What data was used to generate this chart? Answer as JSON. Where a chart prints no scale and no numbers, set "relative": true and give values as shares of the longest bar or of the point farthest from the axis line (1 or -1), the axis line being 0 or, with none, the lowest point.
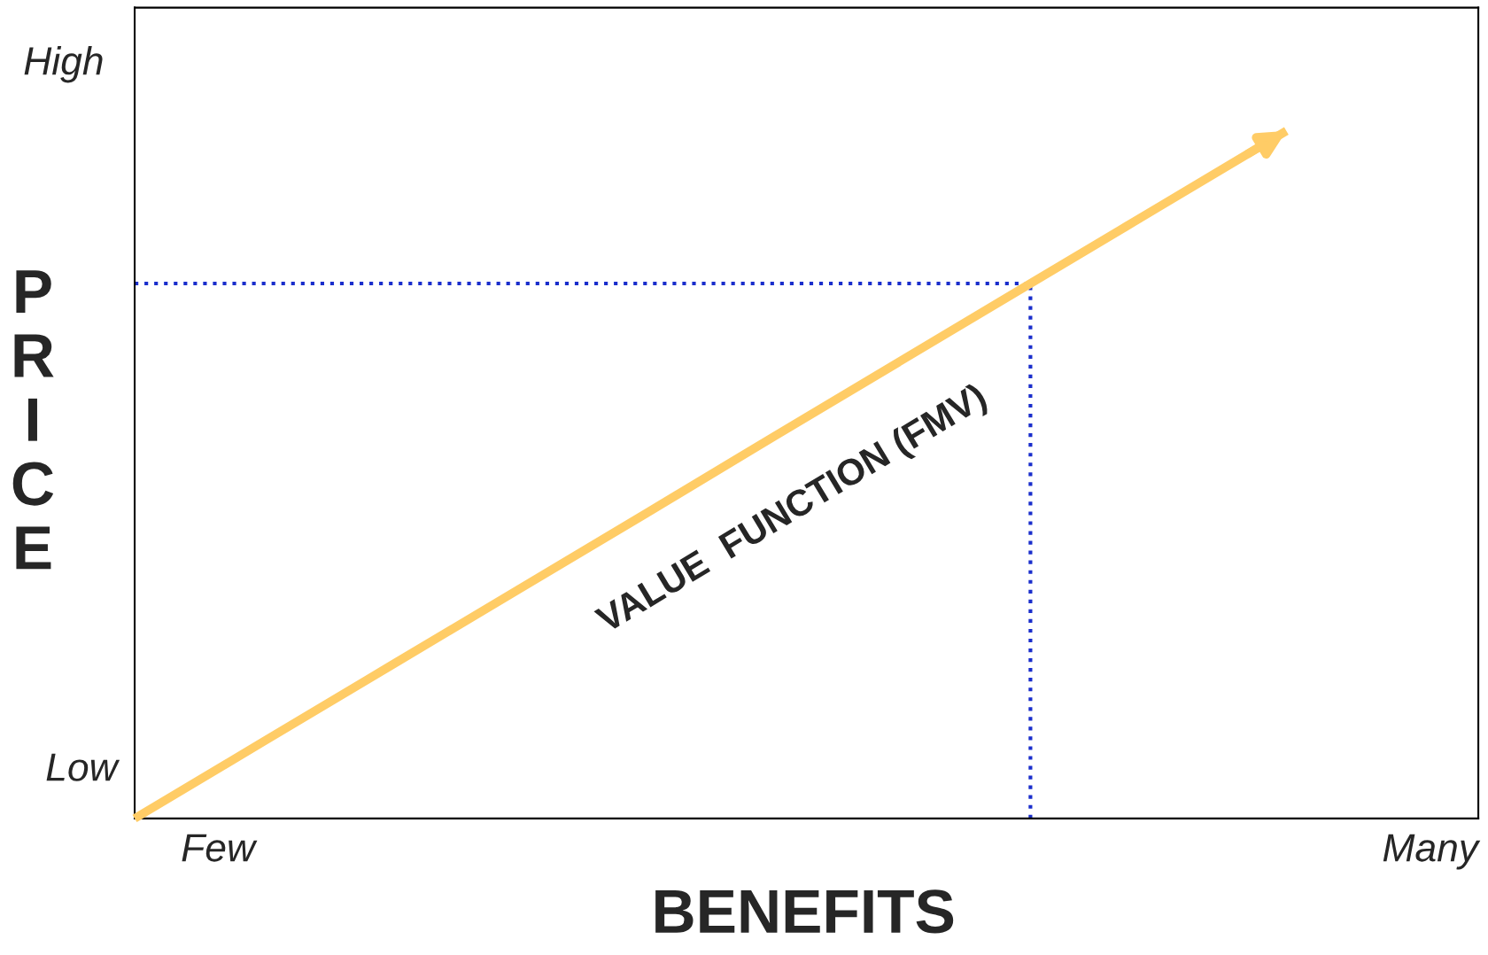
{
  "chart_data": {
    "type": "line",
    "xlabel": "BENEFITS",
    "ylabel": "PRICE",
    "relative": true,
    "marker": "none",
    "line_style": "solid",
    "categories": [
      null,
      null,
      null,
      null,
      null,
      null,
      null,
      null,
      null,
      null,
      null,
      null
    ],
    "series": [
      {
        "values": [
          0,
          0.111,
          0.222,
          0.333,
          0.444,
          0.556,
          0.667,
          0.778,
          0.889,
          1,
          null,
          null
        ],
        "color": "#ffcc66"
      }
    ],
    "ref_lines": [
      {
        "axis": "y",
        "value": 0.778,
        "color": "#1a2ecc",
        "line_style": "dotted"
      }
    ],
    "annotations": [
      "VALUE  FUNCTION (FMV)",
      "Few",
      "Many",
      "Low",
      "High"
    ]
  }
}
